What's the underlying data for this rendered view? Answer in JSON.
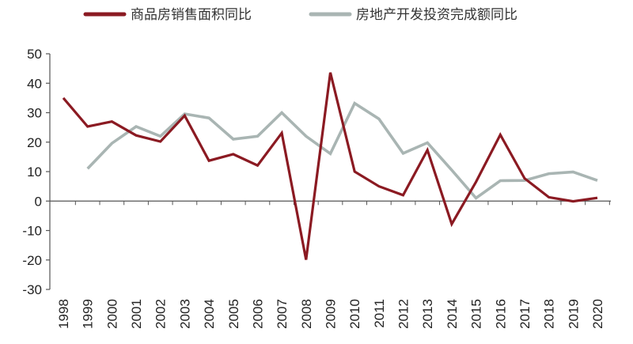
{
  "chart_data": {
    "type": "line",
    "categories": [
      "1998",
      "1999",
      "2000",
      "2001",
      "2002",
      "2003",
      "2004",
      "2005",
      "2006",
      "2007",
      "2008",
      "2009",
      "2010",
      "2011",
      "2012",
      "2013",
      "2014",
      "2015",
      "2016",
      "2017",
      "2018",
      "2019",
      "2020"
    ],
    "series": [
      {
        "name": "商品房销售面积同比",
        "color": "#8b1a22",
        "values": [
          35,
          25.3,
          27,
          22.3,
          20.2,
          29,
          13.7,
          15.9,
          12.1,
          23.1,
          -19.9,
          43.6,
          10,
          5,
          2,
          17.3,
          -7.8,
          6.5,
          22.5,
          7.7,
          1.3,
          -0.1,
          1.1
        ]
      },
      {
        "name": "房地产开发投资完成额同比",
        "color": "#a9b5b3",
        "values": [
          null,
          11,
          19.6,
          25.3,
          22,
          29.6,
          28.2,
          21,
          22,
          30,
          22,
          16.1,
          33.2,
          27.9,
          16.2,
          19.8,
          10.5,
          1,
          6.9,
          7,
          9.3,
          9.9,
          7
        ]
      }
    ],
    "ylim": [
      -30,
      50
    ],
    "yticks": [
      "50",
      "40",
      "30",
      "20",
      "10",
      "0",
      "-10",
      "-20",
      "-30"
    ],
    "grid": false,
    "legend": "top",
    "title": "",
    "xlabel": "",
    "ylabel": ""
  }
}
